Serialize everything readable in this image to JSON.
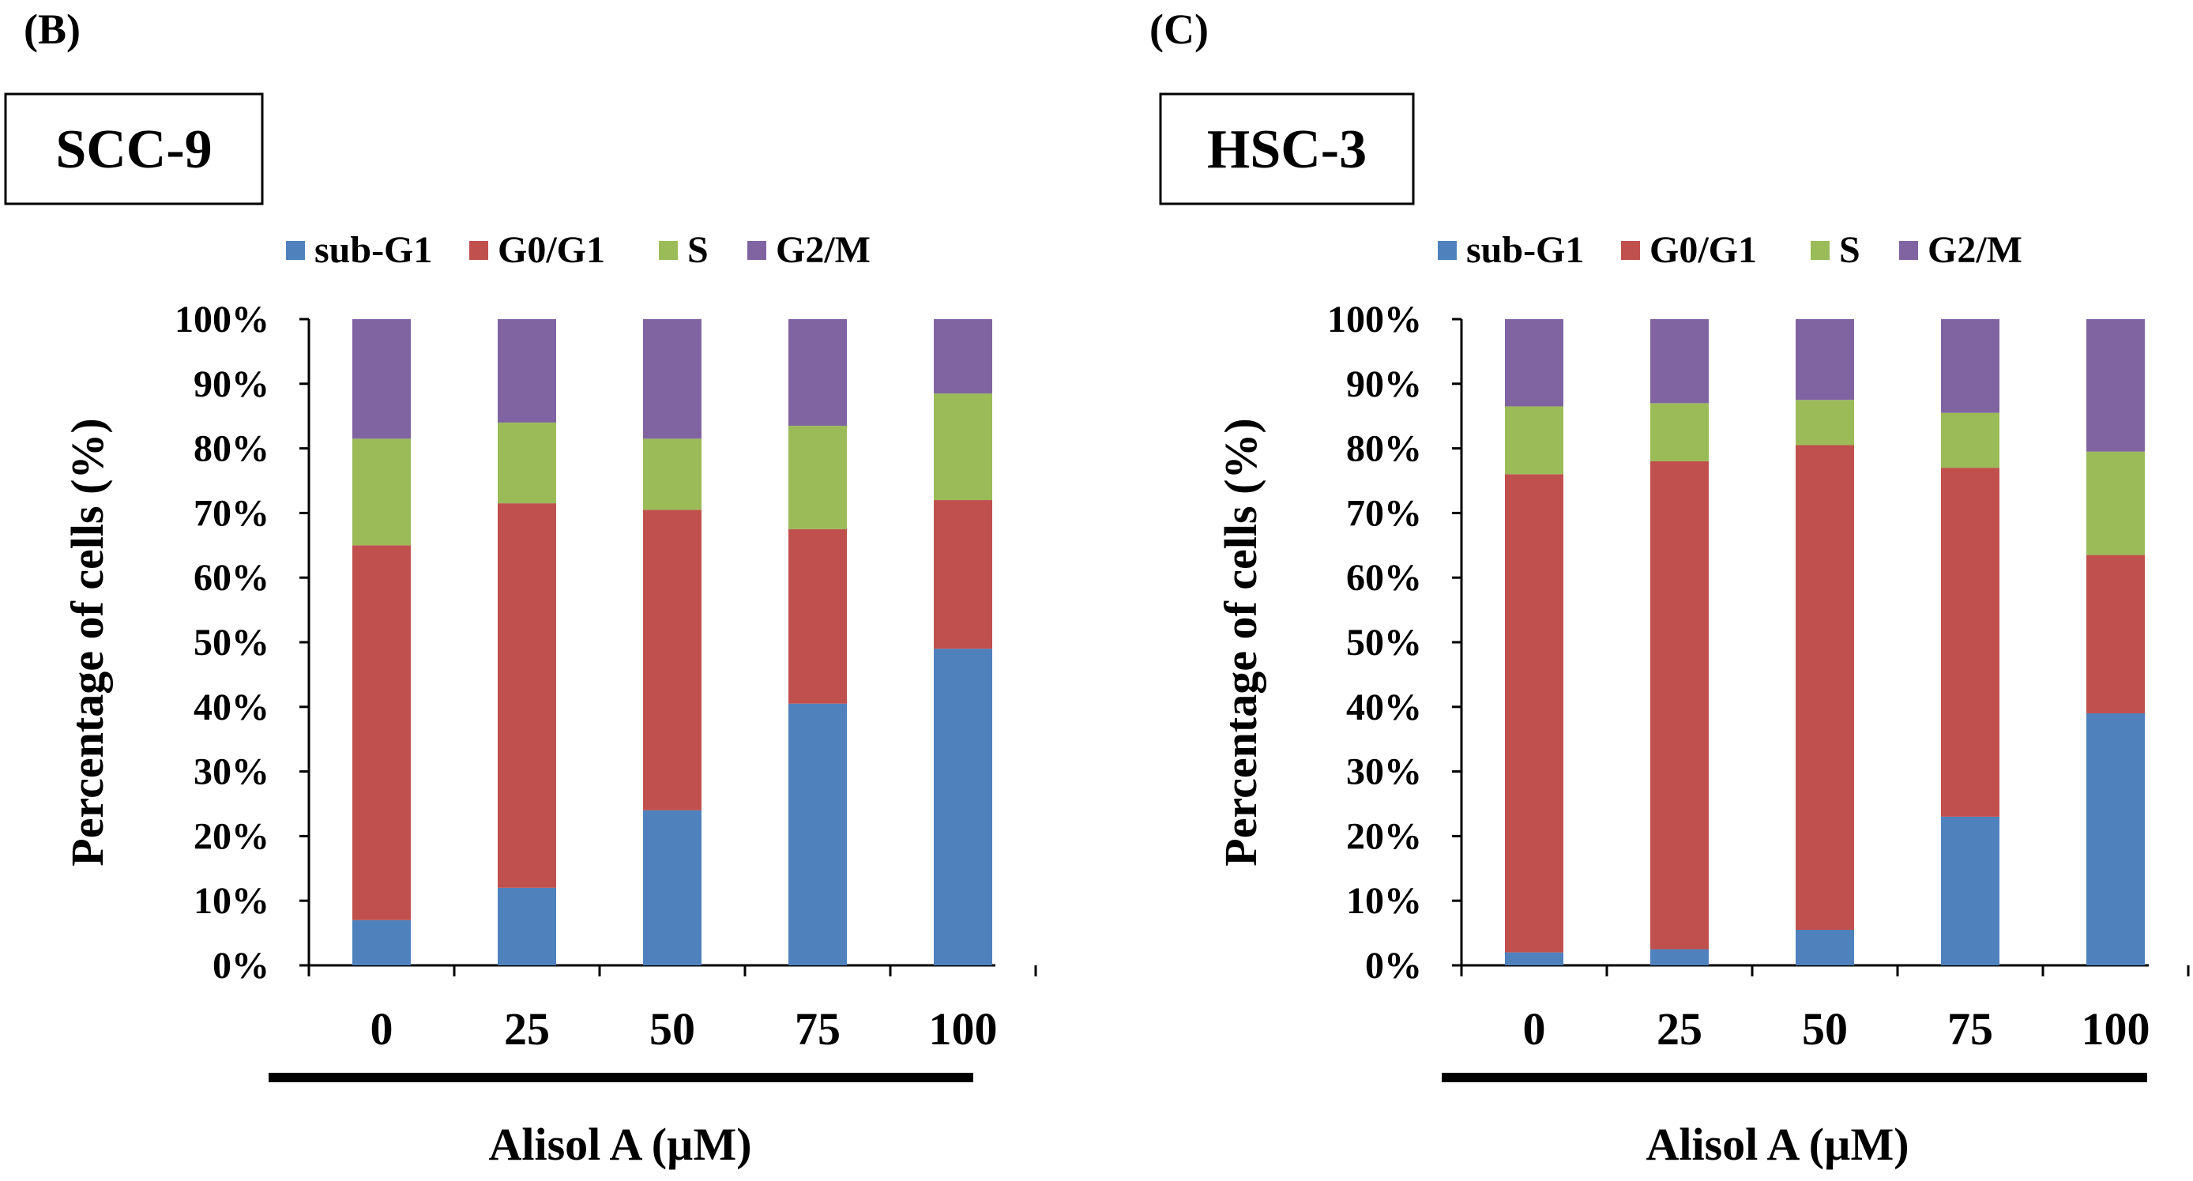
{
  "colors": {
    "sub_g1": "#4F81BD",
    "g0_g1": "#C0504D",
    "s": "#9BBB59",
    "g2_m": "#8064A2",
    "axis": "#000000"
  },
  "chart_data": [
    {
      "type": "bar",
      "stacked": true,
      "panel_label": "(B)",
      "title": "SCC-9",
      "xlabel": "Alisol A (µM)",
      "ylabel": "Percentage of cells (%)",
      "categories": [
        "0",
        "25",
        "50",
        "75",
        "100"
      ],
      "ylim": [
        0,
        100
      ],
      "yticks": [
        "0%",
        "10%",
        "20%",
        "30%",
        "40%",
        "50%",
        "60%",
        "70%",
        "80%",
        "90%",
        "100%"
      ],
      "legend_position": "top",
      "series": [
        {
          "name": "sub-G1",
          "values": [
            7,
            12,
            24,
            40.5,
            49
          ]
        },
        {
          "name": "G0/G1",
          "values": [
            58,
            59.5,
            46.5,
            27,
            23
          ]
        },
        {
          "name": "S",
          "values": [
            16.5,
            12.5,
            11,
            16,
            16.5
          ]
        },
        {
          "name": "G2/M",
          "values": [
            18.5,
            16,
            18.5,
            16.5,
            11.5
          ]
        }
      ]
    },
    {
      "type": "bar",
      "stacked": true,
      "panel_label": "(C)",
      "title": "HSC-3",
      "xlabel": "Alisol A (µM)",
      "ylabel": "Percentage of cells (%)",
      "categories": [
        "0",
        "25",
        "50",
        "75",
        "100"
      ],
      "ylim": [
        0,
        100
      ],
      "yticks": [
        "0%",
        "10%",
        "20%",
        "30%",
        "40%",
        "50%",
        "60%",
        "70%",
        "80%",
        "90%",
        "100%"
      ],
      "legend_position": "top",
      "series": [
        {
          "name": "sub-G1",
          "values": [
            2,
            2.5,
            5.5,
            23,
            39
          ]
        },
        {
          "name": "G0/G1",
          "values": [
            74,
            75.5,
            75,
            54,
            24.5
          ]
        },
        {
          "name": "S",
          "values": [
            10.5,
            9,
            7,
            8.5,
            16
          ]
        },
        {
          "name": "G2/M",
          "values": [
            13.5,
            13,
            12.5,
            14.5,
            20.5
          ]
        }
      ]
    }
  ]
}
